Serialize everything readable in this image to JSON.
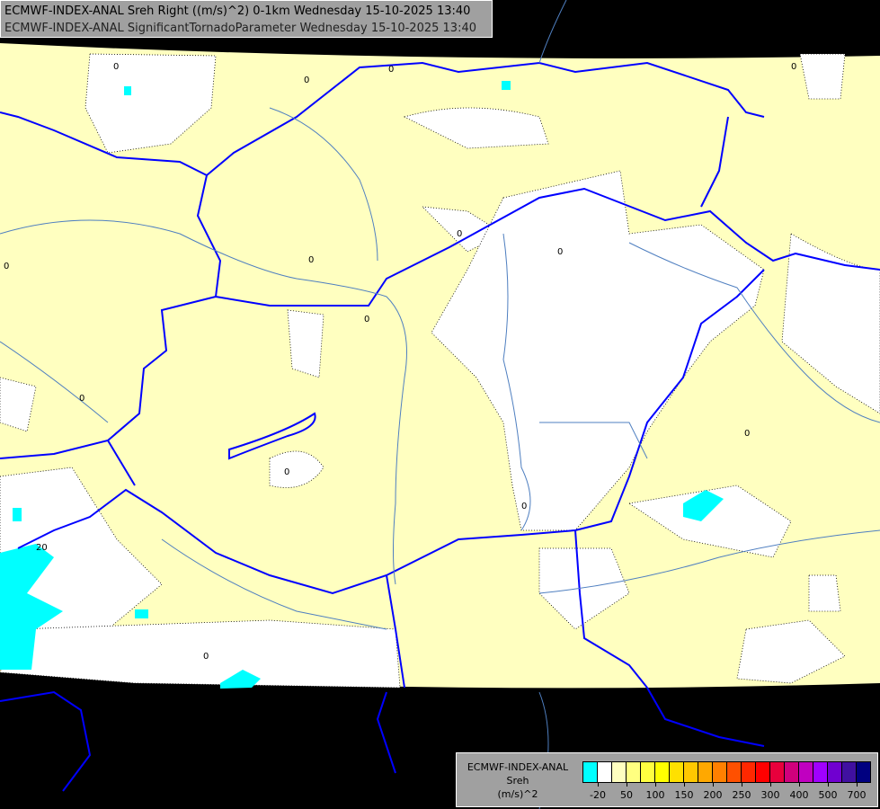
{
  "header": {
    "line1": "ECMWF-INDEX-ANAL Sreh Right ((m/s)^2) 0-1km Wednesday 15-10-2025 13:40",
    "line2": "ECMWF-INDEX-ANAL SignificantTornadoParameter Wednesday 15-10-2025 13:40"
  },
  "map": {
    "contour_labels": [
      "0",
      "0",
      "0",
      "0",
      "0",
      "0",
      "0",
      "0",
      "0",
      "0",
      "0",
      "0",
      "0",
      "0",
      "20"
    ],
    "colors": {
      "background": "#000000",
      "low_shear": "#ffffc0",
      "zero": "#ffffff",
      "negative": "#00ffff",
      "borders": "#0000ff",
      "rivers": "#4f7fc0"
    }
  },
  "legend": {
    "model": "ECMWF-INDEX-ANAL",
    "parameter": "Sreh",
    "unit": "(m/s)^2",
    "colors": [
      "#00ffff",
      "#ffffff",
      "#ffffc0",
      "#ffff80",
      "#ffff40",
      "#ffff00",
      "#ffe000",
      "#ffc800",
      "#ffa800",
      "#ff8000",
      "#ff5000",
      "#ff2800",
      "#ff0000",
      "#e8003c",
      "#d0007c",
      "#c000c0",
      "#a000ff",
      "#7000d0",
      "#4010a0",
      "#000080"
    ],
    "tick_labels": [
      "-20",
      "50",
      "100",
      "150",
      "200",
      "250",
      "300",
      "400",
      "500",
      "700"
    ]
  }
}
